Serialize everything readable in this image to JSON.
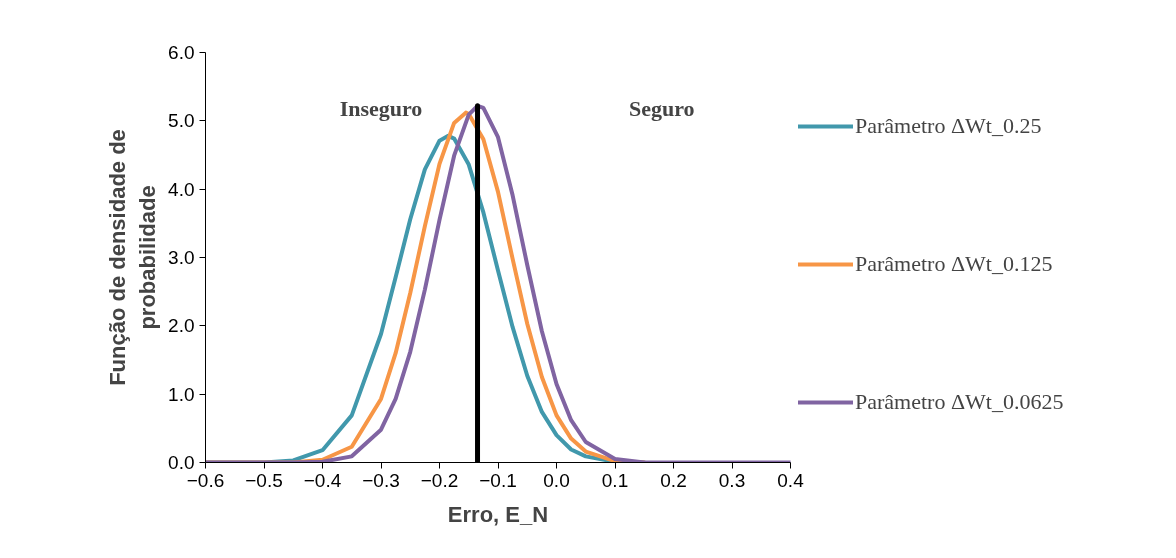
{
  "chart_data": {
    "type": "line",
    "xlabel": "Erro, E_N",
    "ylabel": "Função de densidade de\nprobabilidade",
    "xlim": [
      -0.6,
      0.4
    ],
    "xticks": [
      -0.6,
      -0.5,
      -0.4,
      -0.3,
      -0.2,
      -0.1,
      {
        "value": 0,
        "label": "0.0"
      },
      0.1,
      0.2,
      0.3,
      0.4
    ],
    "ylim": [
      0,
      6
    ],
    "yticks": [
      {
        "value": 0,
        "label": "0.0"
      },
      {
        "value": 1,
        "label": "1.0"
      },
      {
        "value": 2,
        "label": "2.0"
      },
      {
        "value": 3,
        "label": "3.0"
      },
      {
        "value": 4,
        "label": "4.0"
      },
      {
        "value": 5,
        "label": "5.0"
      },
      {
        "value": 6,
        "label": "6.0"
      }
    ],
    "grid": false,
    "legend": "right",
    "marker": "none",
    "line_style": "solid",
    "series": [
      {
        "name": "Parâmetro ΔWt_0.25",
        "color": "#4198ac",
        "x": [
          -0.6,
          -0.5,
          -0.45,
          -0.4,
          -0.35,
          -0.3,
          -0.275,
          -0.25,
          -0.225,
          -0.2,
          -0.185,
          -0.175,
          -0.15,
          -0.125,
          -0.1,
          -0.075,
          -0.05,
          -0.025,
          0,
          0.025,
          0.05,
          0.1,
          0.15
        ],
        "values": [
          0,
          0,
          0.03,
          0.18,
          0.69,
          1.88,
          2.71,
          3.56,
          4.29,
          4.71,
          4.78,
          4.74,
          4.36,
          3.66,
          2.81,
          1.98,
          1.27,
          0.74,
          0.4,
          0.19,
          0.09,
          0.01,
          0
        ]
      },
      {
        "name": "Parâmetro ΔWt_0.125",
        "color": "#f79646",
        "x": [
          -0.6,
          -0.5,
          -0.45,
          -0.4,
          -0.35,
          -0.3,
          -0.275,
          -0.25,
          -0.225,
          -0.2,
          -0.175,
          -0.155,
          -0.15,
          -0.125,
          -0.1,
          -0.075,
          -0.05,
          -0.025,
          0,
          0.025,
          0.05,
          0.1,
          0.15
        ],
        "values": [
          0,
          0,
          0,
          0.04,
          0.23,
          0.93,
          1.6,
          2.48,
          3.46,
          4.37,
          4.97,
          5.12,
          5.1,
          4.73,
          3.96,
          2.98,
          2.03,
          1.25,
          0.69,
          0.35,
          0.16,
          0.02,
          0
        ]
      },
      {
        "name": "Parâmetro ΔWt_0.0625",
        "color": "#8064a2",
        "x": [
          -0.6,
          -0.5,
          -0.45,
          -0.4,
          -0.35,
          -0.3,
          -0.275,
          -0.25,
          -0.225,
          -0.2,
          -0.175,
          -0.15,
          -0.135,
          -0.125,
          -0.1,
          -0.075,
          -0.05,
          -0.025,
          0,
          0.025,
          0.05,
          0.1,
          0.15,
          0.2,
          0.3,
          0.4
        ],
        "values": [
          0,
          0,
          0,
          0.01,
          0.09,
          0.48,
          0.93,
          1.62,
          2.53,
          3.55,
          4.49,
          5.09,
          5.22,
          5.19,
          4.76,
          3.91,
          2.89,
          1.92,
          1.15,
          0.62,
          0.3,
          0.05,
          0,
          0,
          0,
          0
        ]
      },
      {
        "color": "#000000",
        "x": [
          -0.135,
          -0.135
        ],
        "values": [
          0,
          5.22
        ]
      }
    ],
    "annotations": [
      "Inseguro",
      "Seguro"
    ]
  }
}
